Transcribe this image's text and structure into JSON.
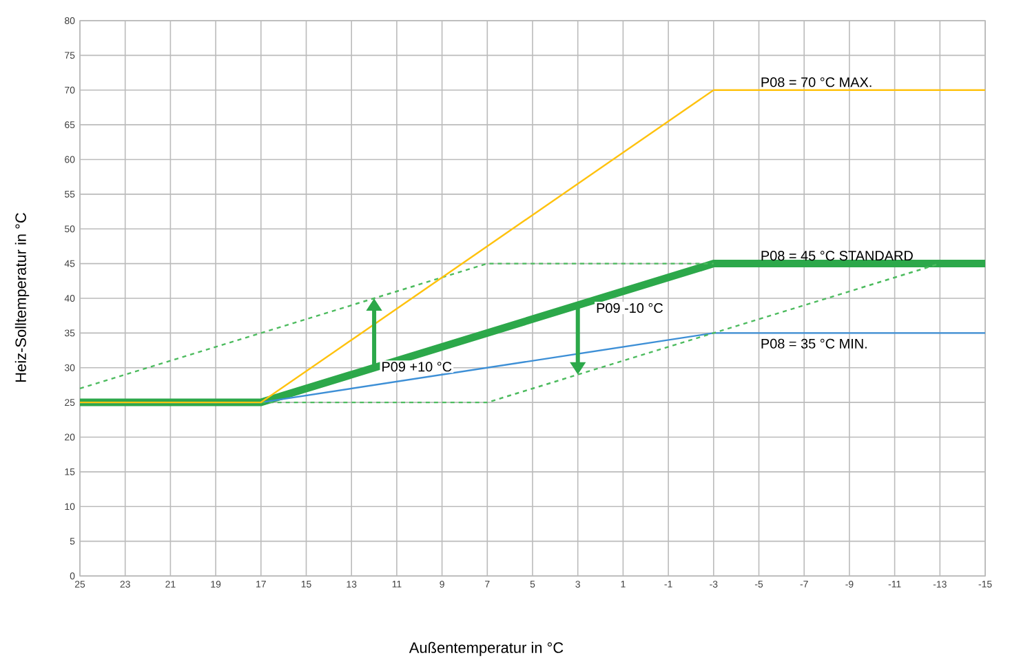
{
  "chart_data": {
    "type": "line",
    "xlabel": "Außentemperatur in °C",
    "ylabel": "Heiz-Solltemperatur in °C",
    "xlim": [
      25,
      -15
    ],
    "xticks": [
      25,
      23,
      21,
      19,
      17,
      15,
      13,
      11,
      9,
      7,
      5,
      3,
      1,
      -1,
      -3,
      -5,
      -7,
      -9,
      -11,
      -13,
      -15
    ],
    "ylim": [
      0,
      80
    ],
    "yticks": [
      0,
      5,
      10,
      15,
      20,
      25,
      30,
      35,
      40,
      45,
      50,
      55,
      60,
      65,
      70,
      75,
      80
    ],
    "grid": true,
    "marker": "none",
    "series": [
      {
        "name": "P08 = 70 °C MAX.",
        "color": "#ffc20e",
        "x": [
          25,
          17,
          -3,
          -15
        ],
        "values": [
          25,
          25,
          70,
          70
        ]
      },
      {
        "name": "P08 = 45 °C STANDARD",
        "color": "#2ca84a",
        "x": [
          25,
          17,
          -3,
          -15
        ],
        "values": [
          25,
          25,
          45,
          45
        ]
      },
      {
        "name": "P08 = 35 °C MIN.",
        "color": "#3d8fd6",
        "x": [
          25,
          17,
          -3,
          -15
        ],
        "values": [
          25,
          25,
          35,
          35
        ]
      },
      {
        "color": "#4cbb5e",
        "line_style": "dashed",
        "x": [
          25,
          7,
          -3
        ],
        "values": [
          27,
          45,
          45
        ]
      },
      {
        "color": "#4cbb5e",
        "line_style": "dashed",
        "x": [
          17,
          7,
          -13
        ],
        "values": [
          25,
          25,
          45
        ]
      }
    ],
    "annotations": [
      {
        "text": "P09 +10 °C",
        "x": 12,
        "y": 30
      },
      {
        "text": "P09 -10 °C",
        "x": 3,
        "y": 39
      }
    ]
  }
}
